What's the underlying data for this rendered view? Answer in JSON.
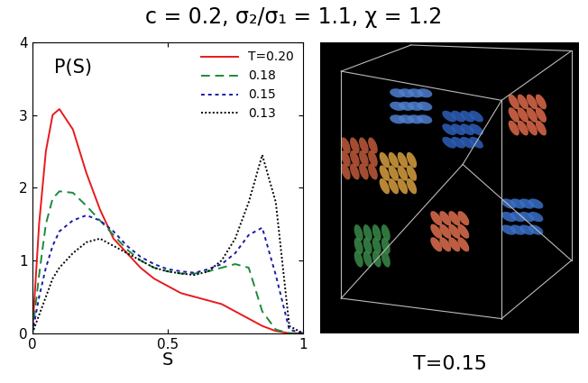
{
  "title": "c = 0.2, σ₂/σ₁ = 1.1, χ = 1.2",
  "chart_data": {
    "type": "line",
    "annotation": "P(S)",
    "x_label": "S",
    "x": [
      0,
      0.025,
      0.05,
      0.075,
      0.1,
      0.15,
      0.2,
      0.25,
      0.3,
      0.35,
      0.4,
      0.45,
      0.5,
      0.55,
      0.6,
      0.65,
      0.7,
      0.75,
      0.8,
      0.85,
      0.9,
      0.95,
      1.0
    ],
    "series": [
      {
        "name": "T=0.20",
        "color": "#e8191e",
        "line_style": "solid",
        "values": [
          0,
          1.5,
          2.5,
          3.0,
          3.08,
          2.8,
          2.2,
          1.7,
          1.3,
          1.1,
          0.9,
          0.75,
          0.65,
          0.55,
          0.5,
          0.45,
          0.4,
          0.3,
          0.2,
          0.1,
          0.03,
          0,
          0
        ]
      },
      {
        "name": "0.18",
        "color": "#1a8a3a",
        "line_style": "dashed",
        "values": [
          0,
          0.8,
          1.5,
          1.85,
          1.95,
          1.93,
          1.75,
          1.55,
          1.35,
          1.15,
          1.0,
          0.9,
          0.85,
          0.82,
          0.82,
          0.85,
          0.9,
          0.95,
          0.9,
          0.3,
          0.05,
          0,
          0
        ]
      },
      {
        "name": "0.15",
        "color": "#1a1aa8",
        "line_style": "dotted",
        "values": [
          0,
          0.5,
          0.9,
          1.2,
          1.4,
          1.55,
          1.62,
          1.55,
          1.4,
          1.2,
          1.05,
          0.95,
          0.88,
          0.85,
          0.83,
          0.88,
          0.95,
          1.1,
          1.35,
          1.45,
          0.8,
          0.05,
          0
        ]
      },
      {
        "name": "0.13",
        "color": "#000000",
        "line_style": "densely_dotted",
        "values": [
          0,
          0.25,
          0.5,
          0.75,
          0.9,
          1.1,
          1.25,
          1.3,
          1.2,
          1.1,
          1.0,
          0.9,
          0.85,
          0.82,
          0.8,
          0.85,
          1.0,
          1.3,
          1.8,
          2.45,
          1.8,
          0.1,
          0
        ]
      }
    ],
    "xlim": [
      0,
      1
    ],
    "xticks": [
      0,
      0.5,
      1
    ],
    "ylim": [
      0,
      4
    ],
    "yticks": [
      0,
      1,
      2,
      3,
      4
    ],
    "legend": "upper right"
  },
  "image": {
    "caption": "T=0.15"
  }
}
